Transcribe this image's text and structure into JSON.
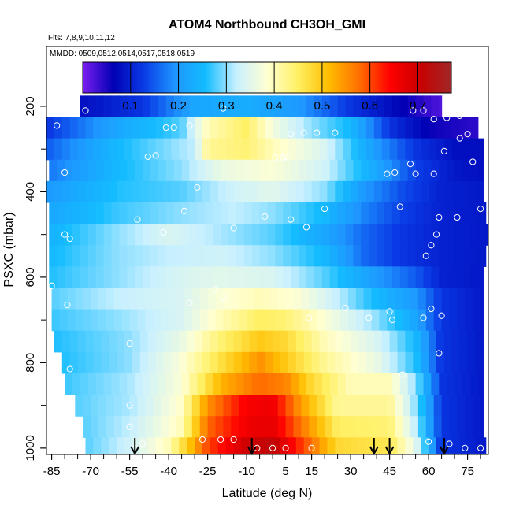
{
  "chart_data": {
    "type": "heatmap",
    "title": "ATOM4 Northbound CH3OH_GMI",
    "subtitle_flights": "Flts: 7,8,9,10,11,12",
    "subtitle_dates": "MMDD: 0509,0512,0514,0517,0518,0519",
    "xlabel": "Latitude (deg N)",
    "ylabel": "PSXC (mbar)",
    "xlim": [
      -87,
      83
    ],
    "ylim": [
      1015,
      60
    ],
    "x_ticks": [
      -85,
      -70,
      -55,
      -40,
      -25,
      -10,
      5,
      15,
      30,
      45,
      60,
      75
    ],
    "y_ticks": [
      200,
      400,
      600,
      800,
      1000
    ],
    "colorbar": {
      "range": [
        0.0,
        0.77
      ],
      "ticks": [
        0.1,
        0.2,
        0.3,
        0.4,
        0.5,
        0.6,
        0.7
      ],
      "colors": [
        "#7a1ef0",
        "#0000b4",
        "#0a3ce6",
        "#1e96ff",
        "#14bcff",
        "#c8f0ff",
        "#ffffd2",
        "#fff064",
        "#ffbe00",
        "#ff6e00",
        "#ff0000",
        "#c80000",
        "#a02828"
      ]
    },
    "pressure_levels": [
      200,
      250,
      300,
      350,
      400,
      450,
      500,
      550,
      600,
      650,
      700,
      750,
      800,
      850,
      900,
      950,
      1000
    ],
    "level_ranges": [
      [
        -74,
        65
      ],
      [
        -87,
        79
      ],
      [
        -87,
        81
      ],
      [
        -86,
        81
      ],
      [
        -87,
        81
      ],
      [
        -86,
        82
      ],
      [
        -86,
        83
      ],
      [
        -86,
        82
      ],
      [
        -86,
        81
      ],
      [
        -85,
        81
      ],
      [
        -85,
        81
      ],
      [
        -84,
        81
      ],
      [
        -81,
        81
      ],
      [
        -80,
        81
      ],
      [
        -76,
        81
      ],
      [
        -73,
        81
      ],
      [
        -72,
        82
      ]
    ],
    "curtain_values": [
      [
        [
          -74,
          0.08
        ],
        [
          -50,
          0.12
        ],
        [
          -30,
          0.22
        ],
        [
          -10,
          0.23
        ],
        [
          10,
          0.2
        ],
        [
          30,
          0.12
        ],
        [
          45,
          0.08
        ],
        [
          58,
          0.04
        ],
        [
          65,
          0.02
        ]
      ],
      [
        [
          -87,
          0.12
        ],
        [
          -60,
          0.22
        ],
        [
          -35,
          0.28
        ],
        [
          -25,
          0.4
        ],
        [
          -10,
          0.45
        ],
        [
          0,
          0.37
        ],
        [
          15,
          0.3
        ],
        [
          30,
          0.25
        ],
        [
          45,
          0.12
        ],
        [
          60,
          0.06
        ],
        [
          79,
          0.04
        ]
      ],
      [
        [
          -87,
          0.15
        ],
        [
          -60,
          0.25
        ],
        [
          -30,
          0.32
        ],
        [
          -25,
          0.42
        ],
        [
          -10,
          0.44
        ],
        [
          0,
          0.4
        ],
        [
          20,
          0.34
        ],
        [
          40,
          0.2
        ],
        [
          55,
          0.12
        ],
        [
          70,
          0.08
        ],
        [
          81,
          0.08
        ]
      ],
      [
        [
          -86,
          0.17
        ],
        [
          -60,
          0.25
        ],
        [
          -35,
          0.3
        ],
        [
          -20,
          0.36
        ],
        [
          0,
          0.38
        ],
        [
          20,
          0.33
        ],
        [
          40,
          0.22
        ],
        [
          55,
          0.13
        ],
        [
          70,
          0.09
        ],
        [
          81,
          0.08
        ]
      ],
      [
        [
          -87,
          0.2
        ],
        [
          -60,
          0.26
        ],
        [
          -35,
          0.28
        ],
        [
          -15,
          0.33
        ],
        [
          0,
          0.35
        ],
        [
          20,
          0.3
        ],
        [
          35,
          0.2
        ],
        [
          50,
          0.14
        ],
        [
          65,
          0.1
        ],
        [
          81,
          0.09
        ]
      ],
      [
        [
          -86,
          0.22
        ],
        [
          -60,
          0.27
        ],
        [
          -35,
          0.3
        ],
        [
          -15,
          0.32
        ],
        [
          0,
          0.3
        ],
        [
          20,
          0.25
        ],
        [
          35,
          0.18
        ],
        [
          50,
          0.13
        ],
        [
          65,
          0.1
        ],
        [
          82,
          0.09
        ]
      ],
      [
        [
          -86,
          0.24
        ],
        [
          -60,
          0.3
        ],
        [
          -40,
          0.34
        ],
        [
          -20,
          0.31
        ],
        [
          0,
          0.28
        ],
        [
          20,
          0.22
        ],
        [
          35,
          0.16
        ],
        [
          50,
          0.12
        ],
        [
          65,
          0.1
        ],
        [
          83,
          0.09
        ]
      ],
      [
        [
          -86,
          0.25
        ],
        [
          -60,
          0.3
        ],
        [
          -40,
          0.32
        ],
        [
          -20,
          0.33
        ],
        [
          0,
          0.3
        ],
        [
          20,
          0.25
        ],
        [
          35,
          0.16
        ],
        [
          50,
          0.12
        ],
        [
          65,
          0.1
        ],
        [
          82,
          0.09
        ]
      ],
      [
        [
          -86,
          0.26
        ],
        [
          -60,
          0.3
        ],
        [
          -35,
          0.34
        ],
        [
          -20,
          0.35
        ],
        [
          0,
          0.34
        ],
        [
          20,
          0.28
        ],
        [
          40,
          0.2
        ],
        [
          55,
          0.15
        ],
        [
          65,
          0.1
        ],
        [
          81,
          0.09
        ]
      ],
      [
        [
          -85,
          0.28
        ],
        [
          -60,
          0.32
        ],
        [
          -35,
          0.34
        ],
        [
          -20,
          0.38
        ],
        [
          -5,
          0.4
        ],
        [
          10,
          0.38
        ],
        [
          25,
          0.32
        ],
        [
          40,
          0.25
        ],
        [
          55,
          0.2
        ],
        [
          65,
          0.12
        ],
        [
          81,
          0.09
        ]
      ],
      [
        [
          -85,
          0.27
        ],
        [
          -60,
          0.3
        ],
        [
          -35,
          0.34
        ],
        [
          -20,
          0.4
        ],
        [
          -5,
          0.45
        ],
        [
          5,
          0.44
        ],
        [
          20,
          0.38
        ],
        [
          40,
          0.3
        ],
        [
          55,
          0.22
        ],
        [
          65,
          0.12
        ],
        [
          81,
          0.09
        ]
      ],
      [
        [
          -84,
          0.26
        ],
        [
          -55,
          0.3
        ],
        [
          -35,
          0.36
        ],
        [
          -20,
          0.44
        ],
        [
          -5,
          0.5
        ],
        [
          5,
          0.48
        ],
        [
          20,
          0.4
        ],
        [
          40,
          0.34
        ],
        [
          55,
          0.25
        ],
        [
          65,
          0.12
        ],
        [
          81,
          0.09
        ]
      ],
      [
        [
          -81,
          0.26
        ],
        [
          -55,
          0.3
        ],
        [
          -35,
          0.38
        ],
        [
          -20,
          0.47
        ],
        [
          -5,
          0.55
        ],
        [
          5,
          0.5
        ],
        [
          20,
          0.42
        ],
        [
          40,
          0.36
        ],
        [
          55,
          0.26
        ],
        [
          65,
          0.12
        ],
        [
          81,
          0.09
        ]
      ],
      [
        [
          -80,
          0.27
        ],
        [
          -55,
          0.31
        ],
        [
          -35,
          0.38
        ],
        [
          -20,
          0.52
        ],
        [
          -5,
          0.58
        ],
        [
          5,
          0.56
        ],
        [
          15,
          0.48
        ],
        [
          30,
          0.4
        ],
        [
          45,
          0.4
        ],
        [
          55,
          0.3
        ],
        [
          65,
          0.12
        ],
        [
          81,
          0.09
        ]
      ],
      [
        [
          -76,
          0.28
        ],
        [
          -55,
          0.31
        ],
        [
          -35,
          0.39
        ],
        [
          -25,
          0.55
        ],
        [
          -10,
          0.65
        ],
        [
          0,
          0.66
        ],
        [
          10,
          0.55
        ],
        [
          25,
          0.42
        ],
        [
          45,
          0.42
        ],
        [
          55,
          0.3
        ],
        [
          65,
          0.12
        ],
        [
          81,
          0.09
        ]
      ],
      [
        [
          -73,
          0.28
        ],
        [
          -55,
          0.32
        ],
        [
          -35,
          0.4
        ],
        [
          -25,
          0.58
        ],
        [
          -10,
          0.66
        ],
        [
          0,
          0.67
        ],
        [
          10,
          0.58
        ],
        [
          25,
          0.45
        ],
        [
          45,
          0.44
        ],
        [
          55,
          0.32
        ],
        [
          65,
          0.12
        ],
        [
          81,
          0.09
        ]
      ],
      [
        [
          -72,
          0.28
        ],
        [
          -55,
          0.33
        ],
        [
          -40,
          0.4
        ],
        [
          -25,
          0.6
        ],
        [
          -10,
          0.7
        ],
        [
          0,
          0.72
        ],
        [
          10,
          0.62
        ],
        [
          25,
          0.48
        ],
        [
          45,
          0.46
        ],
        [
          55,
          0.35
        ],
        [
          65,
          0.12
        ],
        [
          82,
          0.09
        ]
      ]
    ],
    "observations": [
      [
        -86,
        215
      ],
      [
        -83,
        245
      ],
      [
        -72,
        210
      ],
      [
        -48,
        318
      ],
      [
        -45,
        315
      ],
      [
        -41,
        250
      ],
      [
        -38,
        250
      ],
      [
        -32,
        245
      ],
      [
        -19,
        205
      ],
      [
        4,
        320
      ],
      [
        1,
        320
      ],
      [
        5,
        318
      ],
      [
        7,
        265
      ],
      [
        12,
        262
      ],
      [
        17,
        262
      ],
      [
        24,
        262
      ],
      [
        54,
        210
      ],
      [
        58,
        210
      ],
      [
        62,
        230
      ],
      [
        67,
        227
      ],
      [
        72,
        222
      ],
      [
        72,
        275
      ],
      [
        66,
        305
      ],
      [
        75,
        265
      ],
      [
        77,
        330
      ],
      [
        44,
        358
      ],
      [
        47,
        355
      ],
      [
        53,
        335
      ],
      [
        55,
        358
      ],
      [
        62,
        358
      ],
      [
        -80,
        355
      ],
      [
        -29,
        390
      ],
      [
        -34,
        445
      ],
      [
        -52,
        465
      ],
      [
        -42,
        495
      ],
      [
        -15,
        485
      ],
      [
        -3,
        458
      ],
      [
        7,
        465
      ],
      [
        13,
        483
      ],
      [
        20,
        440
      ],
      [
        49,
        435
      ],
      [
        64,
        460
      ],
      [
        63,
        500
      ],
      [
        61,
        525
      ],
      [
        59,
        550
      ],
      [
        71,
        460
      ],
      [
        80,
        440
      ],
      [
        -80,
        500
      ],
      [
        -78,
        510
      ],
      [
        -85,
        620
      ],
      [
        -79,
        665
      ],
      [
        -32,
        660
      ],
      [
        -22,
        628
      ],
      [
        -19,
        648
      ],
      [
        -55,
        755
      ],
      [
        -78,
        815
      ],
      [
        14,
        695
      ],
      [
        28,
        672
      ],
      [
        37,
        695
      ],
      [
        45,
        680
      ],
      [
        46,
        700
      ],
      [
        58,
        695
      ],
      [
        61,
        674
      ],
      [
        65,
        690
      ],
      [
        64,
        778
      ],
      [
        50,
        828
      ],
      [
        -55,
        900
      ],
      [
        -55,
        950
      ],
      [
        -53,
        1000
      ],
      [
        -50,
        990
      ],
      [
        -27,
        980
      ],
      [
        -20,
        980
      ],
      [
        -15,
        980
      ],
      [
        -6,
        1000
      ],
      [
        0,
        1000
      ],
      [
        5,
        1000
      ],
      [
        15,
        1000
      ],
      [
        60,
        985
      ],
      [
        68,
        990
      ],
      [
        74,
        1000
      ],
      [
        80,
        1000
      ]
    ],
    "arrows_lat": [
      -53,
      -8,
      39,
      45,
      66
    ]
  }
}
